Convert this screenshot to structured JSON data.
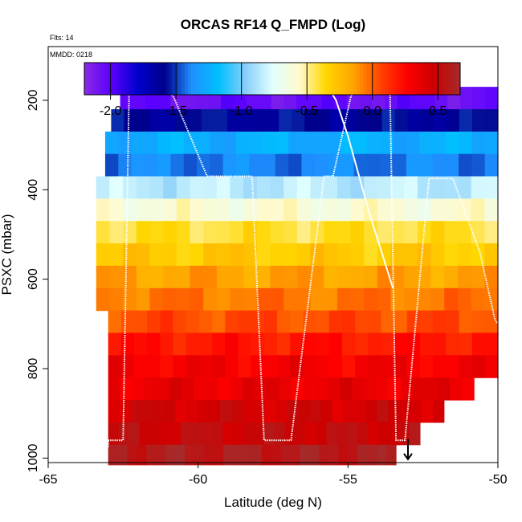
{
  "chart_data": {
    "type": "heatmap",
    "title": "ORCAS RF14 Q_FMPD (Log)",
    "annotations": {
      "flights": "Flts: 14",
      "date": "MMDD: 0218"
    },
    "xlabel": "Latitude (deg N)",
    "ylabel": "PSXC (mbar)",
    "xlim": [
      -65,
      -50
    ],
    "ylim": [
      1010,
      80
    ],
    "y_reversed": true,
    "x_ticks": [
      "-65",
      "-60",
      "-55",
      "-50"
    ],
    "y_ticks": [
      "200",
      "400",
      "600",
      "800",
      "1000"
    ],
    "colorbar": {
      "range": [
        -2.2,
        0.67
      ],
      "ticks": [
        "-2.0",
        "-1.5",
        "-1.0",
        "-0.5",
        "0.0",
        "0.5"
      ],
      "colors": [
        "#8a2be2",
        "#5b00ff",
        "#0000cd",
        "#00008b",
        "#1e90ff",
        "#00bfff",
        "#87cefa",
        "#e0ffff",
        "#fffacd",
        "#ffd700",
        "#ffa500",
        "#ff4500",
        "#ff0000",
        "#cd0000",
        "#a52a2a"
      ]
    },
    "bands": [
      {
        "p_top": 170,
        "p_bot": 220,
        "lat_start": -62.6,
        "lat_end": -50,
        "value": -2.05
      },
      {
        "p_top": 220,
        "p_bot": 270,
        "lat_start": -62.9,
        "lat_end": -50,
        "value": -1.6
      },
      {
        "p_top": 270,
        "p_bot": 320,
        "lat_start": -63.1,
        "lat_end": -50,
        "value": -1.25
      },
      {
        "p_top": 320,
        "p_bot": 370,
        "lat_start": -63.1,
        "lat_end": -50,
        "value": -1.4
      },
      {
        "p_top": 370,
        "p_bot": 420,
        "lat_start": -63.4,
        "lat_end": -50,
        "value": -0.85
      },
      {
        "p_top": 420,
        "p_bot": 470,
        "lat_start": -63.4,
        "lat_end": -50,
        "value": -0.6
      },
      {
        "p_top": 470,
        "p_bot": 520,
        "lat_start": -63.4,
        "lat_end": -50,
        "value": -0.4
      },
      {
        "p_top": 520,
        "p_bot": 570,
        "lat_start": -63.4,
        "lat_end": -50,
        "value": -0.3
      },
      {
        "p_top": 570,
        "p_bot": 620,
        "lat_start": -63.4,
        "lat_end": -50,
        "value": -0.15
      },
      {
        "p_top": 620,
        "p_bot": 670,
        "lat_start": -63.4,
        "lat_end": -50,
        "value": -0.05
      },
      {
        "p_top": 670,
        "p_bot": 720,
        "lat_start": -63.0,
        "lat_end": -50,
        "value": 0.05
      },
      {
        "p_top": 720,
        "p_bot": 770,
        "lat_start": -63.0,
        "lat_end": -50,
        "value": 0.2
      },
      {
        "p_top": 770,
        "p_bot": 820,
        "lat_start": -63.0,
        "lat_end": -50,
        "value": 0.3
      },
      {
        "p_top": 820,
        "p_bot": 870,
        "lat_start": -63.0,
        "lat_end": -50.8,
        "value": 0.35
      },
      {
        "p_top": 870,
        "p_bot": 920,
        "lat_start": -63.0,
        "lat_end": -51.8,
        "value": 0.45
      },
      {
        "p_top": 920,
        "p_bot": 970,
        "lat_start": -63.0,
        "lat_end": -52.6,
        "value": 0.5
      },
      {
        "p_top": 970,
        "p_bot": 1015,
        "lat_start": -63.0,
        "lat_end": -53.4,
        "value": 0.6
      }
    ],
    "flight_track": {
      "lat": [
        -63.0,
        -63.0,
        -62.8,
        -62.5,
        -62.3,
        -62.1,
        -61.0,
        -60.8,
        -59.7,
        -58.2,
        -57.8,
        -56.9,
        -55.8,
        -55.5,
        -54.9,
        -54.7,
        -53.6,
        -53.4,
        -53.1,
        -52.3,
        -51.8,
        -51.5,
        -50.6,
        -50.1,
        -50.0
      ],
      "p": [
        975,
        960,
        960,
        960,
        175,
        175,
        175,
        195,
        370,
        370,
        960,
        960,
        370,
        370,
        190,
        175,
        175,
        960,
        960,
        375,
        375,
        375,
        540,
        690,
        700
      ]
    },
    "flight_track_2": {
      "lat": [
        -55.7,
        -55.6,
        -55.4,
        -55.0,
        -54.3,
        -53.5
      ],
      "p": [
        175,
        178,
        200,
        280,
        450,
        620
      ]
    },
    "marker": {
      "lat": -53.0,
      "p": 990,
      "symbol": "down-arrow"
    }
  }
}
